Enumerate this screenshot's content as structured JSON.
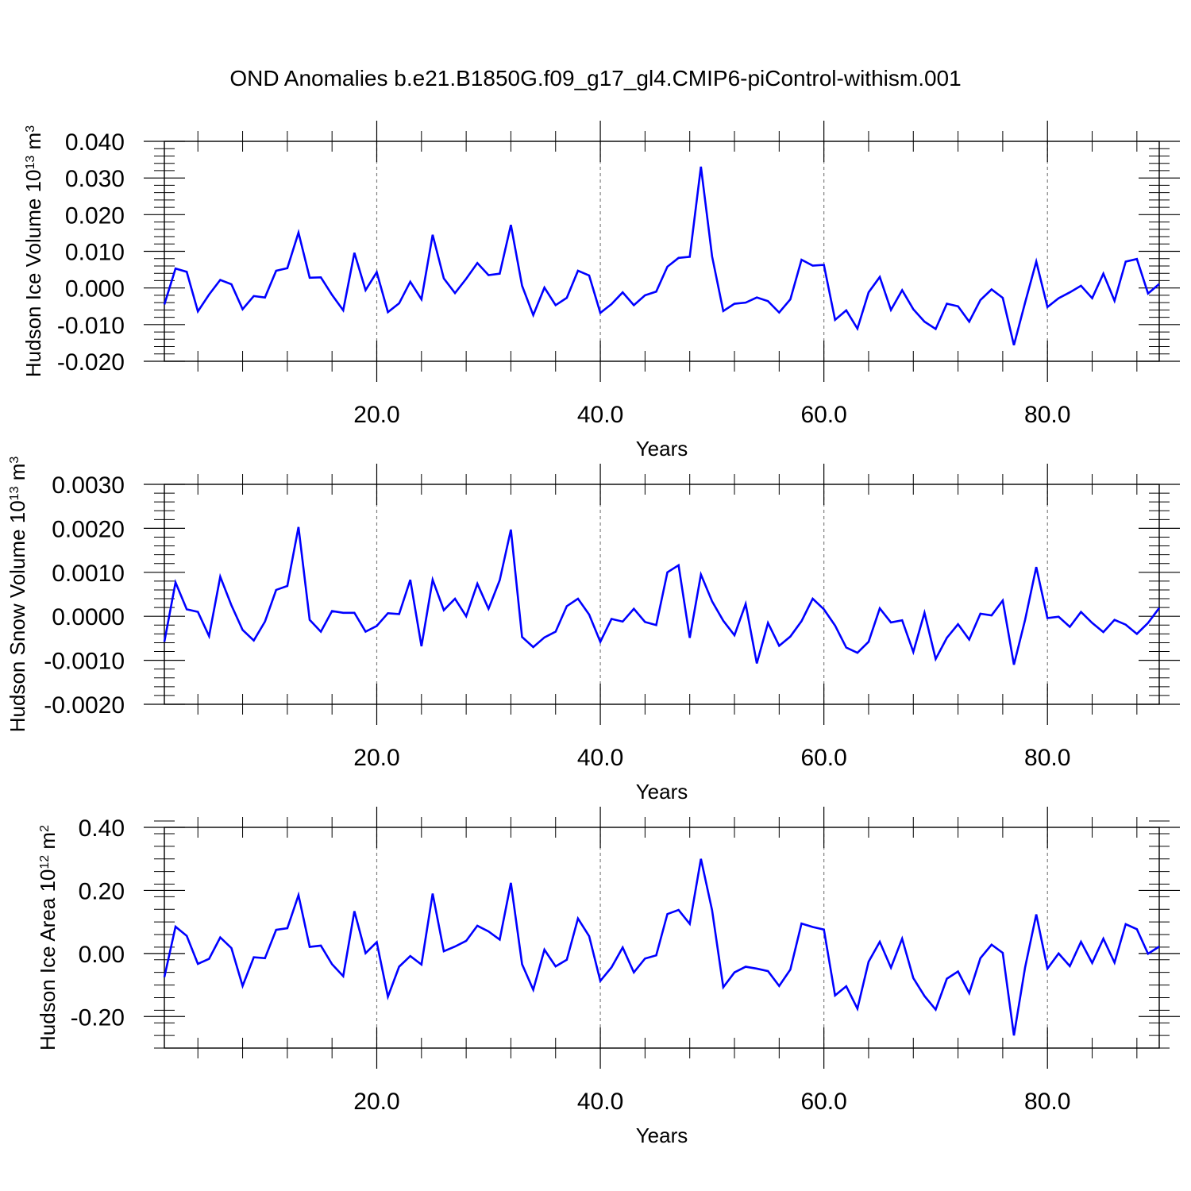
{
  "title": "OND Anomalies b.e21.B1850G.f09_g17_gl4.CMIP6-piControl-withism.001",
  "colors": {
    "line": "#0000ff",
    "axis": "#000000",
    "grid": "#808080",
    "background": "#ffffff"
  },
  "chart_data": [
    {
      "type": "line",
      "ylabel": "Hudson Ice Volume 10",
      "ylabel_exponent": "13",
      "ylabel_unit": " m",
      "ylabel_unit_exponent": "3",
      "xlabel": "Years",
      "xlim": [
        1,
        90
      ],
      "ylim": [
        -0.02,
        0.04
      ],
      "yticks": [
        -0.02,
        -0.01,
        0.0,
        0.01,
        0.02,
        0.03,
        0.04
      ],
      "ytick_labels": [
        "-0.020",
        "-0.010",
        "0.000",
        "0.010",
        "0.020",
        "0.030",
        "0.040"
      ],
      "xticks": [
        20,
        40,
        60,
        80
      ],
      "xtick_labels": [
        "20.0",
        "40.0",
        "60.0",
        "80.0"
      ],
      "grid": "vertical dashed at major x ticks",
      "series": [
        {
          "values": [
            -0.0045,
            0.0053,
            0.0044,
            -0.0064,
            -0.0018,
            0.0022,
            0.001,
            -0.0058,
            -0.0022,
            -0.0026,
            0.0047,
            0.0054,
            0.0151,
            0.0028,
            0.0029,
            -0.0019,
            -0.0061,
            0.0096,
            -0.0006,
            0.0043,
            -0.0066,
            -0.0042,
            0.0017,
            -0.0031,
            0.0145,
            0.0026,
            -0.0014,
            0.0025,
            0.0068,
            0.0035,
            0.0039,
            0.0172,
            0.0006,
            -0.0074,
            0.0001,
            -0.0047,
            -0.0027,
            0.0047,
            0.0034,
            -0.0068,
            -0.0044,
            -0.0012,
            -0.0047,
            -0.002,
            -0.001,
            0.0058,
            0.0082,
            0.0085,
            0.0331,
            0.0086,
            -0.0063,
            -0.0043,
            -0.004,
            -0.0026,
            -0.0036,
            -0.0067,
            -0.0031,
            0.0077,
            0.0061,
            0.0063,
            -0.0087,
            -0.0061,
            -0.0111,
            -0.0012,
            0.003,
            -0.006,
            -0.0006,
            -0.0058,
            -0.0092,
            -0.0112,
            -0.0043,
            -0.005,
            -0.0092,
            -0.0033,
            -0.0004,
            -0.0027,
            -0.0156,
            -0.004,
            0.0072,
            -0.0052,
            -0.0028,
            -0.0012,
            0.0006,
            -0.0028,
            0.0039,
            -0.0035,
            0.0072,
            0.0079,
            -0.0015,
            0.0011
          ]
        }
      ]
    },
    {
      "type": "line",
      "ylabel": "Hudson Snow Volume 10",
      "ylabel_exponent": "13",
      "ylabel_unit": " m",
      "ylabel_unit_exponent": "3",
      "xlabel": "Years",
      "xlim": [
        1,
        90
      ],
      "ylim": [
        -0.002,
        0.003
      ],
      "yticks": [
        -0.002,
        -0.001,
        0.0,
        0.001,
        0.002,
        0.003
      ],
      "ytick_labels": [
        "-0.0020",
        "-0.0010",
        "0.0000",
        "0.0010",
        "0.0020",
        "0.0030"
      ],
      "xticks": [
        20,
        40,
        60,
        80
      ],
      "xtick_labels": [
        "20.0",
        "40.0",
        "60.0",
        "80.0"
      ],
      "grid": "vertical dashed at major x ticks",
      "series": [
        {
          "values": [
            -0.00058,
            0.00077,
            0.00016,
            0.0001,
            -0.00045,
            0.0009,
            0.00025,
            -0.00031,
            -0.00055,
            -0.00012,
            0.0006,
            0.00069,
            0.00203,
            -8e-05,
            -0.00035,
            0.00012,
            8e-05,
            8e-05,
            -0.00035,
            -0.00022,
            7e-05,
            5e-05,
            0.00083,
            -0.00068,
            0.00083,
            0.00014,
            0.0004,
            0.0,
            0.00074,
            0.00017,
            0.00082,
            0.00197,
            -0.00047,
            -0.0007,
            -0.00048,
            -0.00035,
            0.00023,
            0.0004,
            4e-05,
            -0.00058,
            -6e-05,
            -0.00012,
            0.00017,
            -0.00013,
            -0.0002,
            0.001,
            0.00116,
            -0.00049,
            0.00095,
            0.00034,
            -0.0001,
            -0.00043,
            0.00028,
            -0.00107,
            -0.00015,
            -0.00067,
            -0.00046,
            -0.00011,
            0.0004,
            0.00016,
            -0.00021,
            -0.00071,
            -0.00083,
            -0.00058,
            0.00018,
            -0.00014,
            -9e-05,
            -0.00081,
            8e-05,
            -0.00097,
            -0.00049,
            -0.00018,
            -0.00053,
            6e-05,
            2e-05,
            0.00036,
            -0.0011,
            -8e-05,
            0.00112,
            -4e-05,
            -1e-05,
            -0.00024,
            0.0001,
            -0.00015,
            -0.00036,
            -8e-05,
            -0.00019,
            -0.0004,
            -0.00015,
            0.00019
          ]
        }
      ]
    },
    {
      "type": "line",
      "ylabel": "Hudson Ice Area 10",
      "ylabel_exponent": "12",
      "ylabel_unit": " m",
      "ylabel_unit_exponent": "2",
      "xlabel": "Years",
      "xlim": [
        1,
        90
      ],
      "ylim": [
        -0.3,
        0.4
      ],
      "yticks": [
        -0.2,
        0.0,
        0.2,
        0.4
      ],
      "ytick_labels": [
        "-0.20",
        "0.00",
        "0.20",
        "0.40"
      ],
      "xticks": [
        20,
        40,
        60,
        80
      ],
      "xtick_labels": [
        "20.0",
        "40.0",
        "60.0",
        "80.0"
      ],
      "grid": "vertical dashed at major x ticks",
      "series": [
        {
          "values": [
            -0.075,
            0.085,
            0.056,
            -0.033,
            -0.017,
            0.051,
            0.017,
            -0.103,
            -0.012,
            -0.015,
            0.075,
            0.08,
            0.185,
            0.021,
            0.025,
            -0.034,
            -0.072,
            0.134,
            0.001,
            0.036,
            -0.137,
            -0.042,
            -0.008,
            -0.035,
            0.19,
            0.007,
            0.022,
            0.04,
            0.088,
            0.07,
            0.044,
            0.224,
            -0.034,
            -0.115,
            0.012,
            -0.041,
            -0.02,
            0.111,
            0.055,
            -0.087,
            -0.044,
            0.019,
            -0.06,
            -0.016,
            -0.006,
            0.125,
            0.138,
            0.094,
            0.3,
            0.137,
            -0.107,
            -0.06,
            -0.042,
            -0.048,
            -0.056,
            -0.103,
            -0.051,
            0.095,
            0.084,
            0.076,
            -0.133,
            -0.104,
            -0.175,
            -0.026,
            0.037,
            -0.045,
            0.047,
            -0.078,
            -0.135,
            -0.178,
            -0.08,
            -0.057,
            -0.126,
            -0.015,
            0.028,
            0.002,
            -0.26,
            -0.044,
            0.124,
            -0.048,
            0.0,
            -0.04,
            0.037,
            -0.03,
            0.047,
            -0.029,
            0.093,
            0.077,
            -0.001,
            0.022
          ]
        }
      ]
    }
  ]
}
